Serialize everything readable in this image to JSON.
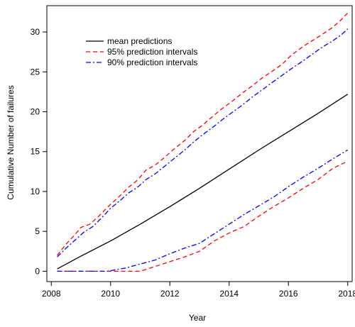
{
  "chart_data": {
    "type": "line",
    "xlabel": "Year",
    "ylabel": "Cumulative Number of failures",
    "xlim": [
      2007.85,
      2018.15
    ],
    "ylim": [
      -1.3,
      33.3
    ],
    "x_ticks": [
      2008,
      2010,
      2012,
      2014,
      2016,
      2018
    ],
    "y_ticks": [
      0,
      5,
      10,
      15,
      20,
      25,
      30
    ],
    "grid": false,
    "legend_position": "top-left",
    "series": [
      {
        "name": "mean predictions",
        "color": "#000000",
        "linestyle": "solid",
        "x": [
          2008.2,
          2009,
          2010,
          2011,
          2012,
          2013,
          2014,
          2015,
          2016,
          2017,
          2018
        ],
        "y": [
          0.3,
          1.9,
          3.8,
          5.9,
          8.1,
          10.4,
          12.8,
          15.2,
          17.5,
          19.8,
          22.2
        ]
      },
      {
        "name": "95% prediction intervals",
        "color": "#ff0000",
        "linestyle": "dashed",
        "x": [
          2008.2,
          2008.5,
          2008.8,
          2009,
          2009.3,
          2009.6,
          2010,
          2010.3,
          2010.6,
          2010.9,
          2011.2,
          2011.5,
          2011.8,
          2012.1,
          2012.5,
          2012.8,
          2013.1,
          2013.5,
          2013.8,
          2014.1,
          2014.5,
          2014.8,
          2015.1,
          2015.5,
          2015.8,
          2016.1,
          2016.5,
          2016.8,
          2017.1,
          2017.5,
          2017.8,
          2018
        ],
        "y": [
          2.0,
          3.4,
          4.6,
          5.5,
          5.9,
          6.9,
          8.4,
          9.4,
          10.5,
          11.4,
          12.7,
          13.3,
          14.2,
          15.2,
          16.4,
          17.5,
          18.3,
          19.6,
          20.5,
          21.3,
          22.5,
          23.3,
          24.2,
          25.2,
          26.0,
          27.1,
          28.2,
          28.9,
          29.6,
          30.6,
          31.6,
          32.4
        ]
      },
      {
        "name": "95% lower",
        "color": "#ff0000",
        "linestyle": "dashed",
        "x": [
          2008.2,
          2009,
          2010,
          2010.5,
          2011,
          2011.5,
          2012,
          2012.5,
          2013,
          2013.5,
          2014,
          2014.5,
          2015,
          2015.5,
          2016,
          2016.5,
          2017,
          2017.5,
          2018
        ],
        "y": [
          0,
          0,
          0,
          0,
          0,
          0.6,
          1.2,
          1.8,
          2.5,
          3.8,
          4.8,
          5.6,
          6.9,
          8.1,
          9.2,
          10.4,
          11.5,
          12.9,
          13.8
        ]
      },
      {
        "name": "90% prediction intervals",
        "color": "#0000ff",
        "linestyle": "dashdot",
        "x": [
          2008.2,
          2008.5,
          2008.8,
          2009.1,
          2009.4,
          2009.7,
          2010,
          2010.3,
          2010.6,
          2010.9,
          2011.2,
          2011.5,
          2011.8,
          2012.1,
          2012.5,
          2012.8,
          2013.1,
          2013.5,
          2013.8,
          2014.1,
          2014.5,
          2014.8,
          2015.1,
          2015.5,
          2015.8,
          2016.1,
          2016.5,
          2016.8,
          2017.1,
          2017.5,
          2017.8,
          2018
        ],
        "y": [
          1.8,
          2.9,
          3.9,
          4.9,
          5.6,
          6.7,
          7.9,
          8.8,
          9.8,
          10.5,
          11.5,
          12.2,
          13.1,
          14.0,
          15.2,
          16.2,
          17.1,
          18.2,
          19.1,
          19.9,
          21.0,
          21.9,
          22.7,
          23.8,
          24.6,
          25.4,
          26.4,
          27.2,
          28.0,
          28.9,
          29.7,
          30.4
        ]
      },
      {
        "name": "90% lower",
        "color": "#0000ff",
        "linestyle": "dashdot",
        "x": [
          2008.2,
          2009,
          2009.9,
          2010.5,
          2011,
          2011.5,
          2012,
          2012.5,
          2013,
          2013.5,
          2014,
          2014.5,
          2015,
          2015.5,
          2016,
          2016.5,
          2017,
          2017.5,
          2018
        ],
        "y": [
          0,
          0,
          0,
          0.4,
          0.9,
          1.4,
          2.2,
          2.9,
          3.5,
          4.7,
          5.9,
          7.1,
          8.2,
          9.3,
          10.6,
          11.8,
          12.9,
          14.1,
          15.2
        ]
      }
    ],
    "legend": [
      {
        "label": "mean predictions",
        "color": "#000000",
        "linestyle": "solid"
      },
      {
        "label": "95% prediction intervals",
        "color": "#ff0000",
        "linestyle": "dashed"
      },
      {
        "label": "90% prediction intervals",
        "color": "#0000ff",
        "linestyle": "dashdot"
      }
    ]
  }
}
